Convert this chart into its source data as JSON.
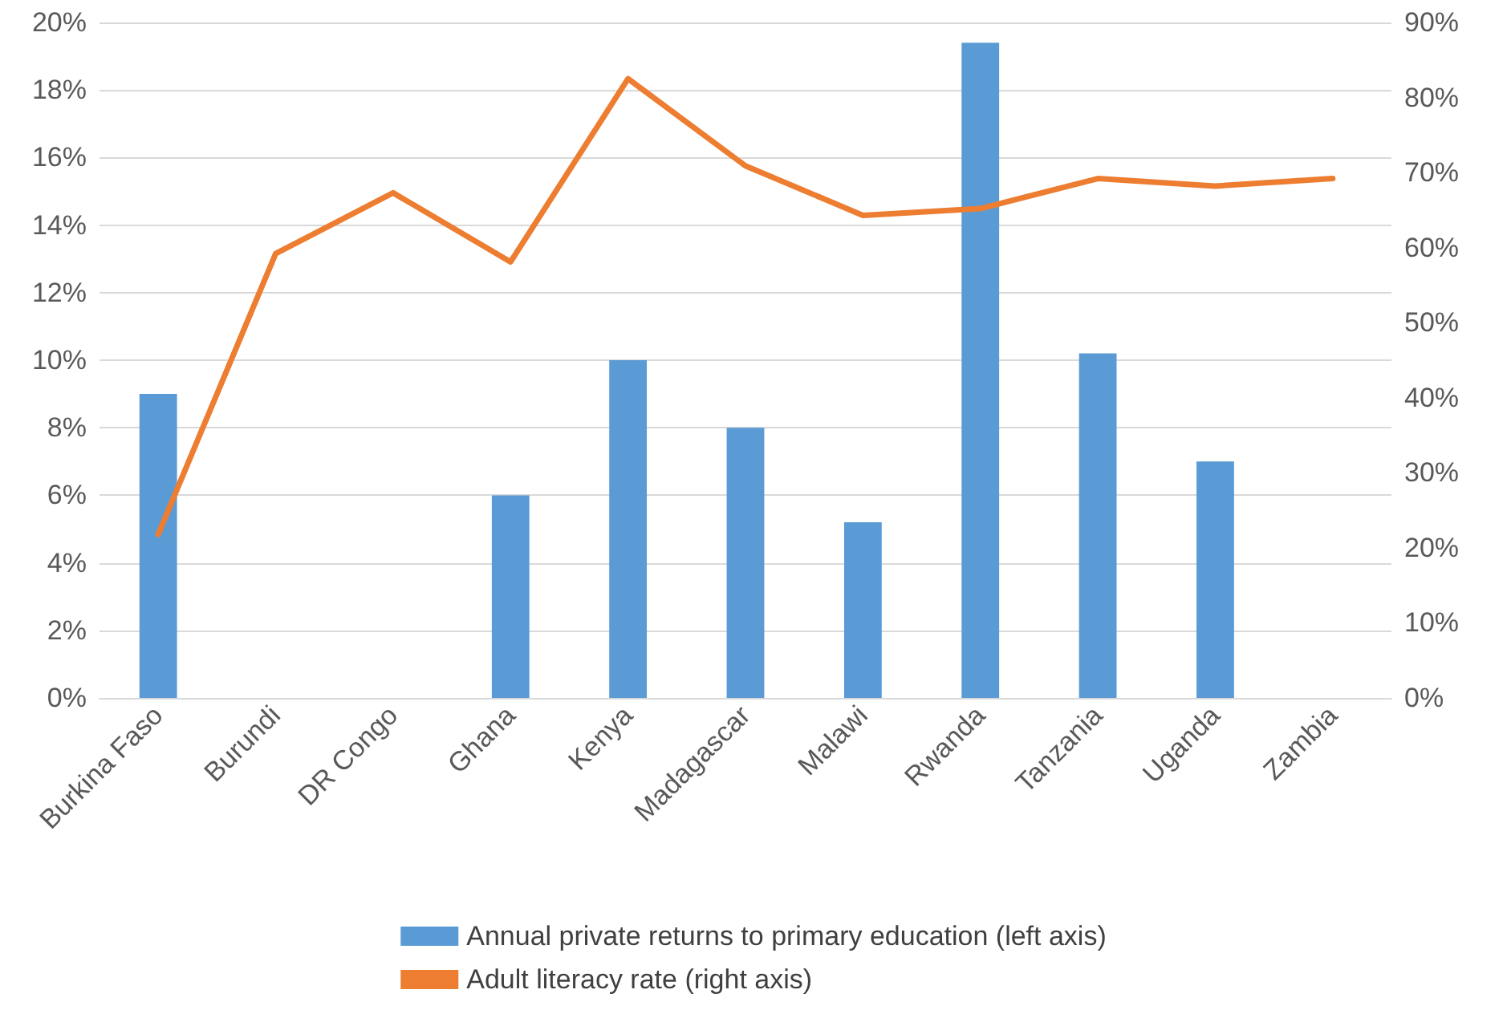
{
  "chart_data": {
    "type": "bar",
    "categories": [
      "Burkina Faso",
      "Burundi",
      "DR Congo",
      "Ghana",
      "Kenya",
      "Madagascar",
      "Malawi",
      "Rwanda",
      "Tanzania",
      "Uganda",
      "Zambia"
    ],
    "series": [
      {
        "name": "Annual private returns to primary education (left axis)",
        "color": "#5b9bd5",
        "values": [
          9.0,
          null,
          null,
          6.0,
          10.0,
          8.0,
          5.2,
          19.4,
          10.2,
          7.0,
          null
        ]
      },
      {
        "name": "Adult literacy rate (right axis)",
        "type": "line",
        "axis": "y2",
        "color": "#ed7d31",
        "values": [
          21.8,
          59.2,
          67.3,
          58.1,
          82.5,
          70.9,
          64.3,
          65.2,
          69.2,
          68.2,
          69.2
        ]
      }
    ],
    "ylim": [
      0,
      20
    ],
    "yticks": [
      {
        "value": 0,
        "label": "0%"
      },
      {
        "value": 2,
        "label": "2%"
      },
      {
        "value": 4,
        "label": "4%"
      },
      {
        "value": 6,
        "label": "6%"
      },
      {
        "value": 8,
        "label": "8%"
      },
      {
        "value": 10,
        "label": "10%"
      },
      {
        "value": 12,
        "label": "12%"
      },
      {
        "value": 14,
        "label": "14%"
      },
      {
        "value": 16,
        "label": "16%"
      },
      {
        "value": 18,
        "label": "18%"
      },
      {
        "value": 20,
        "label": "20%"
      }
    ],
    "y2lim": [
      0,
      90
    ],
    "y2ticks": [
      {
        "value": 0,
        "label": "0%"
      },
      {
        "value": 10,
        "label": "10%"
      },
      {
        "value": 20,
        "label": "20%"
      },
      {
        "value": 30,
        "label": "30%"
      },
      {
        "value": 40,
        "label": "40%"
      },
      {
        "value": 50,
        "label": "50%"
      },
      {
        "value": 60,
        "label": "60%"
      },
      {
        "value": 70,
        "label": "70%"
      },
      {
        "value": 80,
        "label": "80%"
      },
      {
        "value": 90,
        "label": "90%"
      }
    ],
    "grid": true,
    "legend": "bottom",
    "marker": "none",
    "line_style": "solid"
  }
}
